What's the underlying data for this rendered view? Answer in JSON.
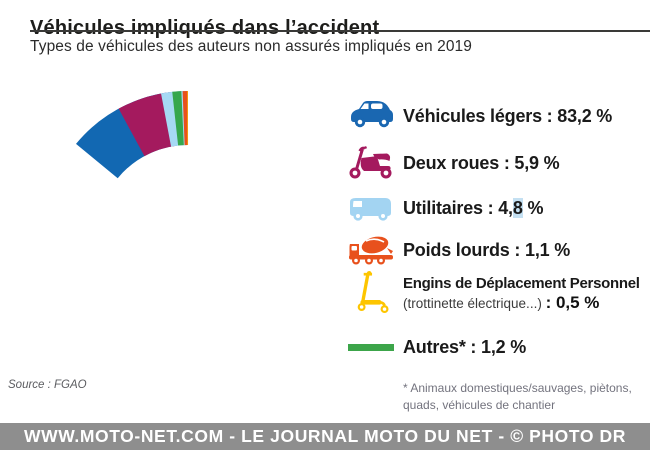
{
  "header": {
    "title": "Véhicules impliqués dans l’accident",
    "subtitle": "Types de véhicules des auteurs non assurés impliqués en 2019"
  },
  "chart_data": {
    "type": "pie",
    "variant": "donut",
    "title": "Véhicules impliqués dans l’accident",
    "subtitle": "Types de véhicules des auteurs non assurés impliqués en 2019",
    "unit": "%",
    "hole_ratio": 0.63,
    "start_angle_deg": 0,
    "direction": "clockwise",
    "slices": [
      {
        "label": "Véhicules légers",
        "value": 83.2,
        "color": "#1268b2"
      },
      {
        "label": "Deux roues",
        "value": 5.9,
        "color": "#a41a5e"
      },
      {
        "label": "Utilitaires",
        "value": 4.8,
        "color": "#a6d9f4"
      },
      {
        "label": "Autres",
        "value": 1.2,
        "color": "#35a74d"
      },
      {
        "label": "Poids lourds",
        "value": 1.1,
        "color": "#e8511d"
      },
      {
        "label": "Engins de Déplacement Personnel (trottinette électrique...)",
        "value": 0.5,
        "color": "#fdc500"
      }
    ],
    "legend": [
      {
        "icon": "car-icon",
        "text": "Véhicules légers : 83,2 %"
      },
      {
        "icon": "moped-icon",
        "text": "Deux roues : 5,9 %"
      },
      {
        "icon": "van-icon",
        "text_pre": "Utilitaires : 4,",
        "text_hl": "8",
        "text_post": " %"
      },
      {
        "icon": "mixer-truck-icon",
        "text": "Poids lourds : 1,1 %"
      },
      {
        "icon": "kick-scooter-icon",
        "line1": "Engins de Déplacement Personnel",
        "line2_regular": "(trottinette électrique...) ",
        "line2_bold": ": 0,5 %"
      },
      {
        "icon": "green-bar-swatch",
        "text": "Autres* : 1,2 %"
      }
    ]
  },
  "footnote": {
    "line1": "* Animaux domestiques/sauvages, piètons,",
    "line2": "quads, véhicules de chantier"
  },
  "source": "Source : FGAO",
  "footer": {
    "text": "WWW.MOTO-NET.COM - LE JOURNAL MOTO DU NET - © PHOTO DR"
  }
}
